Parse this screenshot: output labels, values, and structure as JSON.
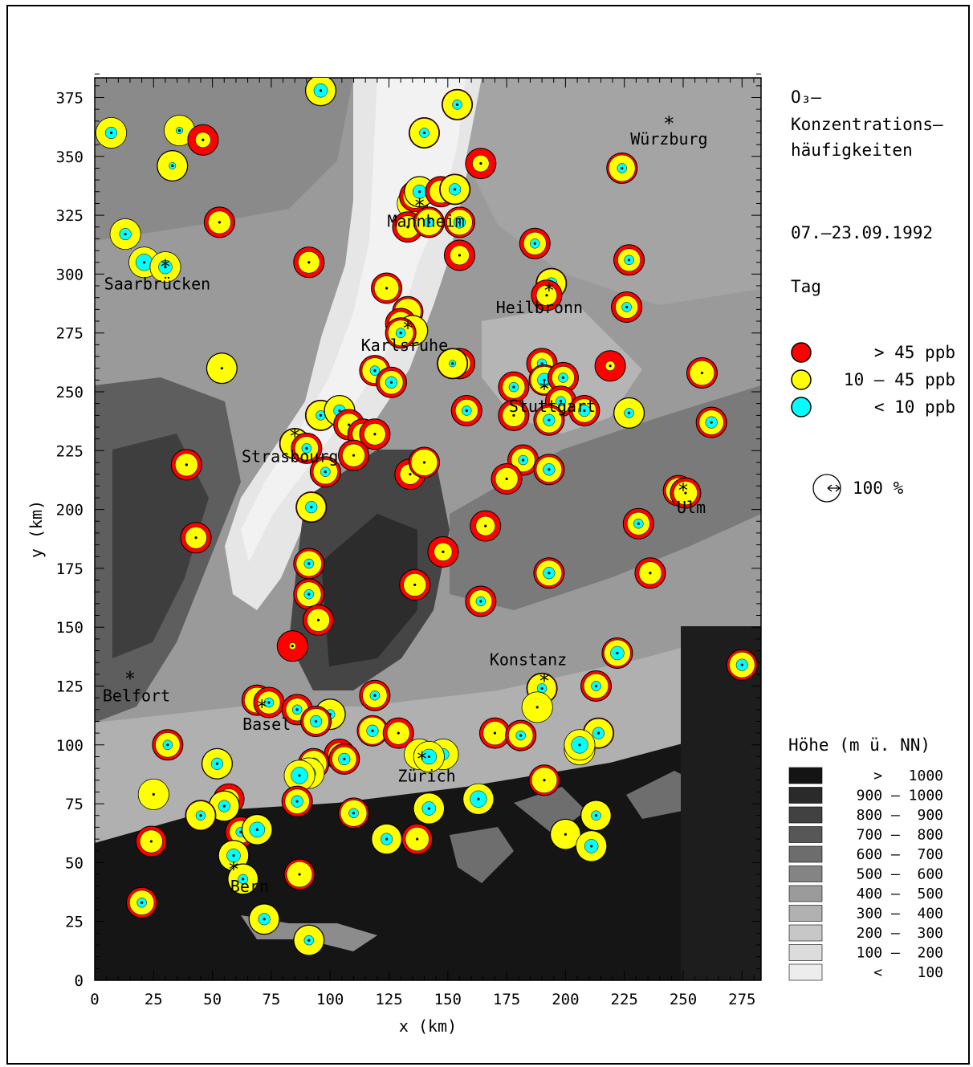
{
  "title_lines": [
    "O₃–",
    "Konzentrations–",
    "häufigkeiten"
  ],
  "period": "07.–23.09.1992",
  "daytime": "Tag",
  "conc_legend": [
    {
      "label": "> 45 ppb",
      "color": "#ff0000"
    },
    {
      "label": "10 – 45 ppb",
      "color": "#ffff00"
    },
    {
      "label": "< 10 ppb",
      "color": "#00ffff"
    }
  ],
  "scale_label": "100 %",
  "height_legend": {
    "title": "Höhe (m ü. NN)",
    "classes": [
      {
        "label": ">   1000",
        "color": "#141414"
      },
      {
        "label": "900 – 1000",
        "color": "#2a2a2a"
      },
      {
        "label": "800 –  900",
        "color": "#414141"
      },
      {
        "label": "700 –  800",
        "color": "#575757"
      },
      {
        "label": "600 –  700",
        "color": "#6d6d6d"
      },
      {
        "label": "500 –  600",
        "color": "#848484"
      },
      {
        "label": "400 –  500",
        "color": "#9b9b9b"
      },
      {
        "label": "300 –  400",
        "color": "#b1b1b1"
      },
      {
        "label": "200 –  300",
        "color": "#c7c7c7"
      },
      {
        "label": "100 –  200",
        "color": "#dcdcdc"
      },
      {
        "label": "<    100",
        "color": "#ededed"
      }
    ]
  },
  "axes": {
    "xlabel": "x (km)",
    "ylabel": "y (km)",
    "xlim": [
      0,
      283
    ],
    "ylim": [
      0,
      385
    ],
    "xticks": [
      0,
      25,
      50,
      75,
      100,
      125,
      150,
      175,
      200,
      225,
      250,
      275
    ],
    "yticks": [
      0,
      25,
      50,
      75,
      100,
      125,
      150,
      175,
      200,
      225,
      250,
      275,
      300,
      325,
      350,
      375
    ]
  },
  "cities": [
    {
      "name": "Würzburg",
      "x": 244,
      "y": 364
    },
    {
      "name": "Mannheim",
      "x": 138,
      "y": 329
    },
    {
      "name": "Saarbrücken",
      "x": 30,
      "y": 303
    },
    {
      "name": "Heilbronn",
      "x": 193,
      "y": 293
    },
    {
      "name": "Karlsruhe",
      "x": 133,
      "y": 277
    },
    {
      "name": "Stuttgart",
      "x": 191,
      "y": 251
    },
    {
      "name": "Strasbourg",
      "x": 85,
      "y": 231
    },
    {
      "name": "Ulm",
      "x": 250,
      "y": 208
    },
    {
      "name": "Konstanz",
      "x": 191,
      "y": 127
    },
    {
      "name": "Belfort",
      "x": 15,
      "y": 128
    },
    {
      "name": "Basel",
      "x": 71,
      "y": 116
    },
    {
      "name": "Zürich",
      "x": 139,
      "y": 94
    },
    {
      "name": "Bern",
      "x": 59,
      "y": 47
    }
  ],
  "chart_data": {
    "type": "scatter",
    "description_units": "station positions in km; r/y/c = fraction of time with O3 >45, 10-45, <10 ppb",
    "stations": [
      {
        "x": 7,
        "y": 360,
        "r": 0.0,
        "yel": 0.85,
        "c": 0.15
      },
      {
        "x": 36,
        "y": 361,
        "r": 0.0,
        "yel": 0.95,
        "c": 0.05
      },
      {
        "x": 46,
        "y": 357,
        "r": 0.75,
        "yel": 0.25,
        "c": 0.0
      },
      {
        "x": 33,
        "y": 346,
        "r": 0.05,
        "yel": 0.9,
        "c": 0.05
      },
      {
        "x": 96,
        "y": 378,
        "r": 0.05,
        "yel": 0.75,
        "c": 0.2
      },
      {
        "x": 140,
        "y": 360,
        "r": 0.1,
        "yel": 0.8,
        "c": 0.1
      },
      {
        "x": 154,
        "y": 372,
        "r": 0.1,
        "yel": 0.8,
        "c": 0.1
      },
      {
        "x": 164,
        "y": 347,
        "r": 0.7,
        "yel": 0.3,
        "c": 0.0
      },
      {
        "x": 224,
        "y": 345,
        "r": 0.25,
        "yel": 0.65,
        "c": 0.1
      },
      {
        "x": 13,
        "y": 317,
        "r": 0.0,
        "yel": 0.85,
        "c": 0.15
      },
      {
        "x": 53,
        "y": 322,
        "r": 0.45,
        "yel": 0.55,
        "c": 0.0
      },
      {
        "x": 21,
        "y": 305,
        "r": 0.0,
        "yel": 0.7,
        "c": 0.3
      },
      {
        "x": 30,
        "y": 303,
        "r": 0.0,
        "yel": 0.8,
        "c": 0.2
      },
      {
        "x": 91,
        "y": 305,
        "r": 0.5,
        "yel": 0.5,
        "c": 0.0
      },
      {
        "x": 135,
        "y": 330,
        "r": 0.0,
        "yel": 0.9,
        "c": 0.1
      },
      {
        "x": 136,
        "y": 333,
        "r": 0.4,
        "yel": 0.5,
        "c": 0.1
      },
      {
        "x": 138,
        "y": 335,
        "r": 0.05,
        "yel": 0.75,
        "c": 0.2
      },
      {
        "x": 133,
        "y": 320,
        "r": 0.45,
        "yel": 0.55,
        "c": 0.0
      },
      {
        "x": 142,
        "y": 322,
        "r": 0.25,
        "yel": 0.65,
        "c": 0.1
      },
      {
        "x": 147,
        "y": 335,
        "r": 0.45,
        "yel": 0.55,
        "c": 0.0
      },
      {
        "x": 153,
        "y": 336,
        "r": 0.1,
        "yel": 0.75,
        "c": 0.15
      },
      {
        "x": 155,
        "y": 322,
        "r": 0.3,
        "yel": 0.55,
        "c": 0.15
      },
      {
        "x": 155,
        "y": 308,
        "r": 0.6,
        "yel": 0.4,
        "c": 0.0
      },
      {
        "x": 187,
        "y": 313,
        "r": 0.45,
        "yel": 0.45,
        "c": 0.1
      },
      {
        "x": 227,
        "y": 306,
        "r": 0.45,
        "yel": 0.45,
        "c": 0.1
      },
      {
        "x": 124,
        "y": 294,
        "r": 0.35,
        "yel": 0.65,
        "c": 0.0
      },
      {
        "x": 194,
        "y": 296,
        "r": 0.1,
        "yel": 0.75,
        "c": 0.15
      },
      {
        "x": 192,
        "y": 291,
        "r": 0.55,
        "yel": 0.45,
        "c": 0.0
      },
      {
        "x": 226,
        "y": 286,
        "r": 0.45,
        "yel": 0.45,
        "c": 0.1
      },
      {
        "x": 133,
        "y": 284,
        "r": 0.25,
        "yel": 0.75,
        "c": 0.0
      },
      {
        "x": 130,
        "y": 279,
        "r": 0.4,
        "yel": 0.6,
        "c": 0.0
      },
      {
        "x": 135,
        "y": 276,
        "r": 0.05,
        "yel": 0.9,
        "c": 0.05
      },
      {
        "x": 130,
        "y": 275,
        "r": 0.3,
        "yel": 0.6,
        "c": 0.1
      },
      {
        "x": 54,
        "y": 260,
        "r": 0.05,
        "yel": 0.95,
        "c": 0.0
      },
      {
        "x": 119,
        "y": 259,
        "r": 0.3,
        "yel": 0.6,
        "c": 0.1
      },
      {
        "x": 126,
        "y": 254,
        "r": 0.4,
        "yel": 0.45,
        "c": 0.15
      },
      {
        "x": 155,
        "y": 262,
        "r": 0.5,
        "yel": 0.5,
        "c": 0.0
      },
      {
        "x": 152,
        "y": 262,
        "r": 0.1,
        "yel": 0.85,
        "c": 0.05
      },
      {
        "x": 190,
        "y": 262,
        "r": 0.45,
        "yel": 0.45,
        "c": 0.1
      },
      {
        "x": 219,
        "y": 261,
        "r": 0.9,
        "yel": 0.1,
        "c": 0.0
      },
      {
        "x": 258,
        "y": 258,
        "r": 0.35,
        "yel": 0.65,
        "c": 0.0
      },
      {
        "x": 178,
        "y": 252,
        "r": 0.45,
        "yel": 0.45,
        "c": 0.1
      },
      {
        "x": 191,
        "y": 255,
        "r": 0.2,
        "yel": 0.6,
        "c": 0.2
      },
      {
        "x": 199,
        "y": 256,
        "r": 0.45,
        "yel": 0.45,
        "c": 0.1
      },
      {
        "x": 198,
        "y": 246,
        "r": 0.45,
        "yel": 0.45,
        "c": 0.1
      },
      {
        "x": 208,
        "y": 242,
        "r": 0.4,
        "yel": 0.45,
        "c": 0.15
      },
      {
        "x": 227,
        "y": 241,
        "r": 0.05,
        "yel": 0.85,
        "c": 0.1
      },
      {
        "x": 262,
        "y": 237,
        "r": 0.35,
        "yel": 0.5,
        "c": 0.15
      },
      {
        "x": 178,
        "y": 240,
        "r": 0.45,
        "yel": 0.55,
        "c": 0.0
      },
      {
        "x": 193,
        "y": 238,
        "r": 0.3,
        "yel": 0.55,
        "c": 0.15
      },
      {
        "x": 158,
        "y": 242,
        "r": 0.45,
        "yel": 0.45,
        "c": 0.1
      },
      {
        "x": 96,
        "y": 240,
        "r": 0.1,
        "yel": 0.8,
        "c": 0.1
      },
      {
        "x": 104,
        "y": 242,
        "r": 0.05,
        "yel": 0.8,
        "c": 0.15
      },
      {
        "x": 108,
        "y": 236,
        "r": 0.45,
        "yel": 0.55,
        "c": 0.0
      },
      {
        "x": 114,
        "y": 232,
        "r": 0.5,
        "yel": 0.5,
        "c": 0.0
      },
      {
        "x": 119,
        "y": 232,
        "r": 0.5,
        "yel": 0.5,
        "c": 0.0
      },
      {
        "x": 85,
        "y": 228,
        "r": 0.1,
        "yel": 0.9,
        "c": 0.0
      },
      {
        "x": 90,
        "y": 226,
        "r": 0.4,
        "yel": 0.5,
        "c": 0.1
      },
      {
        "x": 110,
        "y": 223,
        "r": 0.45,
        "yel": 0.55,
        "c": 0.0
      },
      {
        "x": 39,
        "y": 219,
        "r": 0.45,
        "yel": 0.55,
        "c": 0.0
      },
      {
        "x": 98,
        "y": 216,
        "r": 0.35,
        "yel": 0.55,
        "c": 0.1
      },
      {
        "x": 134,
        "y": 215,
        "r": 0.55,
        "yel": 0.45,
        "c": 0.0
      },
      {
        "x": 140,
        "y": 220,
        "r": 0.25,
        "yel": 0.75,
        "c": 0.0
      },
      {
        "x": 182,
        "y": 221,
        "r": 0.4,
        "yel": 0.5,
        "c": 0.1
      },
      {
        "x": 175,
        "y": 213,
        "r": 0.45,
        "yel": 0.55,
        "c": 0.0
      },
      {
        "x": 193,
        "y": 217,
        "r": 0.3,
        "yel": 0.55,
        "c": 0.15
      },
      {
        "x": 248,
        "y": 208,
        "r": 0.3,
        "yel": 0.6,
        "c": 0.1
      },
      {
        "x": 251,
        "y": 207,
        "r": 0.4,
        "yel": 0.6,
        "c": 0.0
      },
      {
        "x": 92,
        "y": 201,
        "r": 0.1,
        "yel": 0.75,
        "c": 0.15
      },
      {
        "x": 166,
        "y": 193,
        "r": 0.6,
        "yel": 0.4,
        "c": 0.0
      },
      {
        "x": 231,
        "y": 194,
        "r": 0.45,
        "yel": 0.45,
        "c": 0.1
      },
      {
        "x": 43,
        "y": 188,
        "r": 0.5,
        "yel": 0.5,
        "c": 0.0
      },
      {
        "x": 148,
        "y": 182,
        "r": 0.65,
        "yel": 0.35,
        "c": 0.0
      },
      {
        "x": 91,
        "y": 177,
        "r": 0.3,
        "yel": 0.6,
        "c": 0.1
      },
      {
        "x": 193,
        "y": 173,
        "r": 0.3,
        "yel": 0.55,
        "c": 0.15
      },
      {
        "x": 236,
        "y": 173,
        "r": 0.45,
        "yel": 0.55,
        "c": 0.0
      },
      {
        "x": 136,
        "y": 168,
        "r": 0.45,
        "yel": 0.55,
        "c": 0.0
      },
      {
        "x": 91,
        "y": 164,
        "r": 0.35,
        "yel": 0.55,
        "c": 0.1
      },
      {
        "x": 164,
        "y": 161,
        "r": 0.45,
        "yel": 0.45,
        "c": 0.1
      },
      {
        "x": 95,
        "y": 153,
        "r": 0.45,
        "yel": 0.55,
        "c": 0.0
      },
      {
        "x": 84,
        "y": 142,
        "r": 0.95,
        "yel": 0.05,
        "c": 0.0
      },
      {
        "x": 222,
        "y": 139,
        "r": 0.25,
        "yel": 0.55,
        "c": 0.2
      },
      {
        "x": 275,
        "y": 134,
        "r": 0.3,
        "yel": 0.55,
        "c": 0.15
      },
      {
        "x": 190,
        "y": 124,
        "r": 0.1,
        "yel": 0.8,
        "c": 0.1
      },
      {
        "x": 213,
        "y": 125,
        "r": 0.35,
        "yel": 0.55,
        "c": 0.1
      },
      {
        "x": 119,
        "y": 121,
        "r": 0.35,
        "yel": 0.55,
        "c": 0.1
      },
      {
        "x": 69,
        "y": 119,
        "r": 0.3,
        "yel": 0.7,
        "c": 0.0
      },
      {
        "x": 74,
        "y": 118,
        "r": 0.45,
        "yel": 0.45,
        "c": 0.1
      },
      {
        "x": 86,
        "y": 115,
        "r": 0.45,
        "yel": 0.45,
        "c": 0.1
      },
      {
        "x": 188,
        "y": 116,
        "r": 0.0,
        "yel": 1.0,
        "c": 0.0
      },
      {
        "x": 100,
        "y": 113,
        "r": 0.05,
        "yel": 0.85,
        "c": 0.1
      },
      {
        "x": 94,
        "y": 110,
        "r": 0.3,
        "yel": 0.55,
        "c": 0.15
      },
      {
        "x": 118,
        "y": 106,
        "r": 0.2,
        "yel": 0.65,
        "c": 0.15
      },
      {
        "x": 129,
        "y": 105,
        "r": 0.45,
        "yel": 0.55,
        "c": 0.0
      },
      {
        "x": 170,
        "y": 105,
        "r": 0.4,
        "yel": 0.6,
        "c": 0.0
      },
      {
        "x": 181,
        "y": 104,
        "r": 0.35,
        "yel": 0.55,
        "c": 0.1
      },
      {
        "x": 214,
        "y": 105,
        "r": 0.1,
        "yel": 0.75,
        "c": 0.15
      },
      {
        "x": 31,
        "y": 100,
        "r": 0.35,
        "yel": 0.55,
        "c": 0.1
      },
      {
        "x": 206,
        "y": 98,
        "r": 0.0,
        "yel": 0.75,
        "c": 0.25
      },
      {
        "x": 206,
        "y": 100,
        "r": 0.0,
        "yel": 0.7,
        "c": 0.3
      },
      {
        "x": 104,
        "y": 96,
        "r": 0.45,
        "yel": 0.45,
        "c": 0.1
      },
      {
        "x": 106,
        "y": 94,
        "r": 0.35,
        "yel": 0.5,
        "c": 0.15
      },
      {
        "x": 138,
        "y": 96,
        "r": 0.0,
        "yel": 0.85,
        "c": 0.15
      },
      {
        "x": 148,
        "y": 96,
        "r": 0.0,
        "yel": 0.85,
        "c": 0.15
      },
      {
        "x": 142,
        "y": 95,
        "r": 0.0,
        "yel": 0.75,
        "c": 0.25
      },
      {
        "x": 52,
        "y": 92,
        "r": 0.05,
        "yel": 0.8,
        "c": 0.15
      },
      {
        "x": 93,
        "y": 92,
        "r": 0.25,
        "yel": 0.6,
        "c": 0.15
      },
      {
        "x": 91,
        "y": 88,
        "r": 0.0,
        "yel": 0.8,
        "c": 0.2
      },
      {
        "x": 87,
        "y": 87,
        "r": 0.0,
        "yel": 0.7,
        "c": 0.3
      },
      {
        "x": 191,
        "y": 85,
        "r": 0.3,
        "yel": 0.7,
        "c": 0.0
      },
      {
        "x": 25,
        "y": 79,
        "r": 0.0,
        "yel": 1.0,
        "c": 0.0
      },
      {
        "x": 57,
        "y": 77,
        "r": 0.55,
        "yel": 0.45,
        "c": 0.0
      },
      {
        "x": 55,
        "y": 74,
        "r": 0.05,
        "yel": 0.8,
        "c": 0.15
      },
      {
        "x": 86,
        "y": 76,
        "r": 0.35,
        "yel": 0.5,
        "c": 0.15
      },
      {
        "x": 163,
        "y": 77,
        "r": 0.0,
        "yel": 0.7,
        "c": 0.3
      },
      {
        "x": 142,
        "y": 73,
        "r": 0.0,
        "yel": 0.8,
        "c": 0.2
      },
      {
        "x": 110,
        "y": 71,
        "r": 0.25,
        "yel": 0.65,
        "c": 0.1
      },
      {
        "x": 213,
        "y": 70,
        "r": 0.05,
        "yel": 0.85,
        "c": 0.1
      },
      {
        "x": 45,
        "y": 70,
        "r": 0.1,
        "yel": 0.8,
        "c": 0.1
      },
      {
        "x": 62,
        "y": 63,
        "r": 0.45,
        "yel": 0.45,
        "c": 0.1
      },
      {
        "x": 69,
        "y": 64,
        "r": 0.05,
        "yel": 0.7,
        "c": 0.25
      },
      {
        "x": 200,
        "y": 62,
        "r": 0.05,
        "yel": 0.95,
        "c": 0.0
      },
      {
        "x": 24,
        "y": 59,
        "r": 0.45,
        "yel": 0.55,
        "c": 0.0
      },
      {
        "x": 124,
        "y": 60,
        "r": 0.05,
        "yel": 0.8,
        "c": 0.15
      },
      {
        "x": 137,
        "y": 60,
        "r": 0.4,
        "yel": 0.6,
        "c": 0.0
      },
      {
        "x": 211,
        "y": 57,
        "r": 0.0,
        "yel": 0.8,
        "c": 0.2
      },
      {
        "x": 59,
        "y": 53,
        "r": 0.05,
        "yel": 0.75,
        "c": 0.2
      },
      {
        "x": 87,
        "y": 45,
        "r": 0.3,
        "yel": 0.7,
        "c": 0.0
      },
      {
        "x": 63,
        "y": 43,
        "r": 0.05,
        "yel": 0.85,
        "c": 0.1
      },
      {
        "x": 20,
        "y": 33,
        "r": 0.35,
        "yel": 0.55,
        "c": 0.1
      },
      {
        "x": 72,
        "y": 26,
        "r": 0.05,
        "yel": 0.8,
        "c": 0.15
      },
      {
        "x": 91,
        "y": 17,
        "r": 0.05,
        "yel": 0.85,
        "c": 0.1
      }
    ]
  }
}
